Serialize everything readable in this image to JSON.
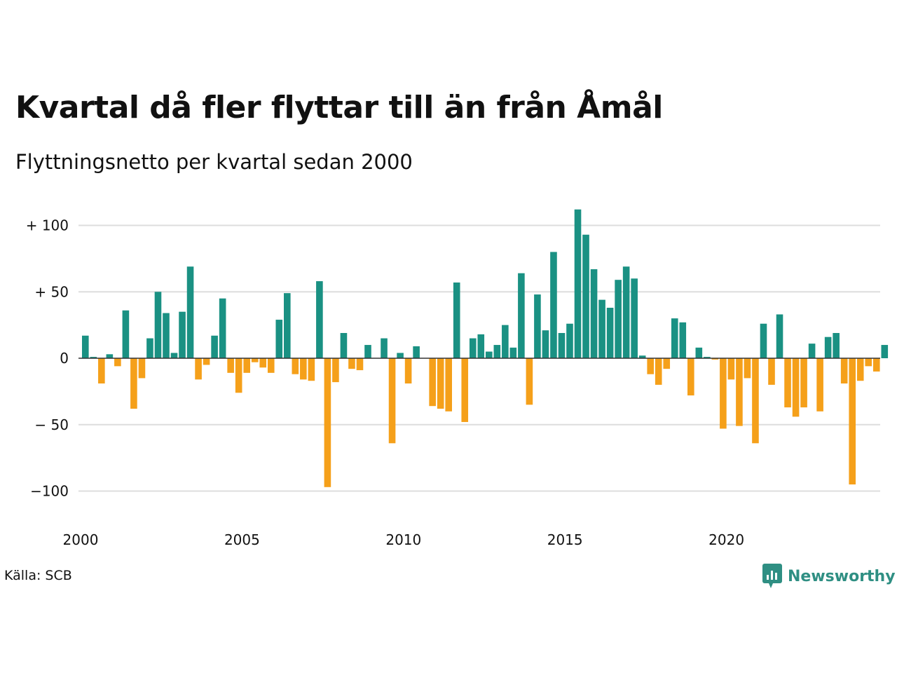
{
  "title": "Kvartal då fler flyttar till än från Åmål",
  "subtitle": "Flyttningsnetto per kvartal sedan 2000",
  "source": "Källa: SCB",
  "brand": {
    "name": "Newsworthy",
    "icon": "newsworthy-chart-icon"
  },
  "colors": {
    "positive": "#1a9183",
    "negative": "#f5a01a",
    "grid": "#dddddd",
    "zero": "#333333",
    "brand": "#2f8f83"
  },
  "chart_data": {
    "type": "bar",
    "title": "Kvartal då fler flyttar till än från Åmål",
    "subtitle": "Flyttningsnetto per kvartal sedan 2000",
    "y_ticks": [
      {
        "value": 100,
        "label": "+ 100"
      },
      {
        "value": 50,
        "label": "+  50"
      },
      {
        "value": 0,
        "label": "0"
      },
      {
        "value": -50,
        "label": "− 50"
      },
      {
        "value": -100,
        "label": "−100"
      }
    ],
    "x_ticks": [
      "2000",
      "2005",
      "2010",
      "2015",
      "2020"
    ],
    "ylim": [
      -108,
      116
    ],
    "grid": true,
    "start": "2000 Q1",
    "values": [
      17,
      1,
      -19,
      3,
      -6,
      36,
      -38,
      -15,
      15,
      50,
      34,
      4,
      35,
      69,
      -16,
      -5,
      17,
      45,
      -11,
      -26,
      -11,
      -3,
      -7,
      -11,
      29,
      49,
      -12,
      -16,
      -17,
      58,
      -97,
      -18,
      19,
      -8,
      -9,
      10,
      0,
      15,
      -64,
      4,
      -19,
      9,
      0,
      -36,
      -38,
      -40,
      57,
      -48,
      15,
      18,
      5,
      10,
      25,
      8,
      64,
      -35,
      48,
      21,
      80,
      19,
      26,
      112,
      93,
      67,
      44,
      38,
      59,
      69,
      60,
      2,
      -12,
      -20,
      -8,
      30,
      27,
      -28,
      8,
      1,
      -1,
      -53,
      -16,
      -51,
      -15,
      -64,
      26,
      -20,
      33,
      -37,
      -44,
      -37,
      11,
      -40,
      16,
      19,
      -19,
      -95,
      -17,
      -6,
      -10,
      10
    ]
  }
}
